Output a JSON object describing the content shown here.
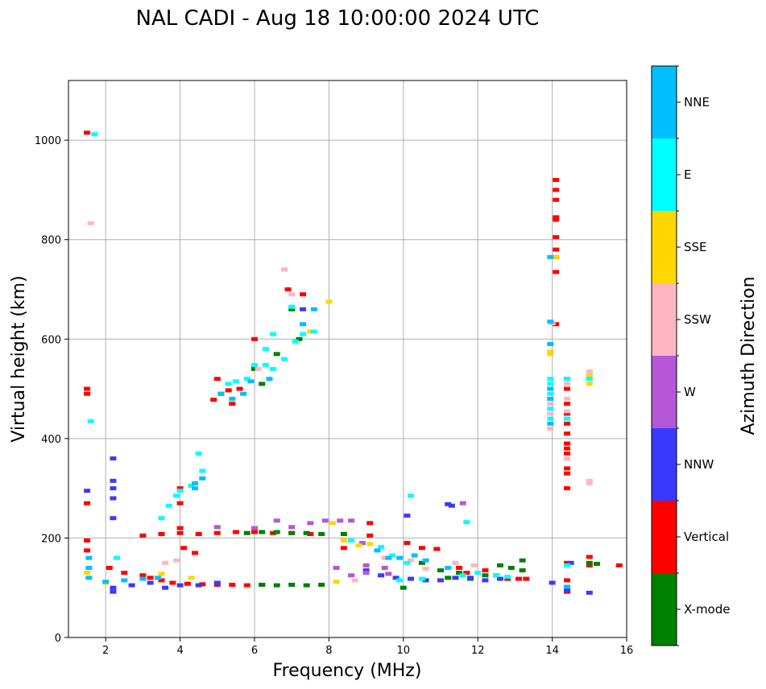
{
  "chart_data": {
    "type": "scatter",
    "title": "NAL CADI - Aug 18 10:00:00 2024 UTC",
    "xlabel": "Frequency (MHz)",
    "ylabel": "Virtual height (km)",
    "xlim": [
      1,
      16
    ],
    "ylim": [
      0,
      1120
    ],
    "xticks": [
      2,
      4,
      6,
      8,
      10,
      12,
      14,
      16
    ],
    "yticks": [
      0,
      200,
      400,
      600,
      800,
      1000
    ],
    "grid": true,
    "colorbar": {
      "label": "Azimuth Direction",
      "categories": [
        {
          "name": "X-mode",
          "color": "#008000"
        },
        {
          "name": "Vertical",
          "color": "#ff0000"
        },
        {
          "name": "NNW",
          "color": "#3a3aff"
        },
        {
          "name": "W",
          "color": "#b557d6"
        },
        {
          "name": "SSW",
          "color": "#ffb6c1"
        },
        {
          "name": "SSE",
          "color": "#ffd700"
        },
        {
          "name": "E",
          "color": "#00ffff"
        },
        {
          "name": "NNE",
          "color": "#00bfff"
        }
      ]
    },
    "series": [
      {
        "name": "Vertical",
        "points": [
          [
            1.5,
            1015
          ],
          [
            1.5,
            500
          ],
          [
            1.5,
            490
          ],
          [
            1.5,
            270
          ],
          [
            1.5,
            195
          ],
          [
            1.5,
            175
          ],
          [
            2.1,
            140
          ],
          [
            2.5,
            130
          ],
          [
            3.0,
            125
          ],
          [
            3.2,
            120
          ],
          [
            3.5,
            115
          ],
          [
            3.8,
            110
          ],
          [
            4.2,
            108
          ],
          [
            4.6,
            107
          ],
          [
            5.0,
            106
          ],
          [
            5.4,
            106
          ],
          [
            5.8,
            105
          ],
          [
            6.2,
            106
          ],
          [
            3.0,
            205
          ],
          [
            3.5,
            208
          ],
          [
            4.0,
            210
          ],
          [
            4.5,
            208
          ],
          [
            5.0,
            210
          ],
          [
            5.5,
            212
          ],
          [
            6.0,
            212
          ],
          [
            6.5,
            210
          ],
          [
            7.0,
            210
          ],
          [
            7.5,
            208
          ],
          [
            4.0,
            300
          ],
          [
            4.0,
            270
          ],
          [
            4.0,
            220
          ],
          [
            4.1,
            180
          ],
          [
            4.4,
            170
          ],
          [
            4.9,
            478
          ],
          [
            5.1,
            490
          ],
          [
            5.3,
            497
          ],
          [
            5.4,
            470
          ],
          [
            5.6,
            500
          ],
          [
            5.0,
            520
          ],
          [
            6.0,
            600
          ],
          [
            6.9,
            700
          ],
          [
            7.3,
            690
          ],
          [
            8.4,
            180
          ],
          [
            9.1,
            230
          ],
          [
            9.1,
            205
          ],
          [
            10.1,
            190
          ],
          [
            10.5,
            180
          ],
          [
            10.9,
            178
          ],
          [
            11.5,
            140
          ],
          [
            11.7,
            130
          ],
          [
            12.2,
            135
          ],
          [
            12.5,
            125
          ],
          [
            12.8,
            118
          ],
          [
            13.1,
            118
          ],
          [
            13.3,
            118
          ],
          [
            14.1,
            920
          ],
          [
            14.1,
            900
          ],
          [
            14.1,
            880
          ],
          [
            14.1,
            845
          ],
          [
            14.1,
            840
          ],
          [
            14.1,
            805
          ],
          [
            14.1,
            780
          ],
          [
            14.1,
            765
          ],
          [
            14.1,
            735
          ],
          [
            14.1,
            630
          ],
          [
            14.4,
            520
          ],
          [
            14.4,
            500
          ],
          [
            14.4,
            470
          ],
          [
            14.4,
            450
          ],
          [
            14.4,
            430
          ],
          [
            14.4,
            410
          ],
          [
            14.4,
            390
          ],
          [
            14.4,
            380
          ],
          [
            14.4,
            370
          ],
          [
            14.4,
            340
          ],
          [
            14.4,
            330
          ],
          [
            14.4,
            300
          ],
          [
            14.4,
            150
          ],
          [
            14.4,
            115
          ],
          [
            14.4,
            100
          ],
          [
            14.4,
            92
          ],
          [
            15.0,
            162
          ],
          [
            15.0,
            145
          ],
          [
            15.8,
            145
          ]
        ]
      },
      {
        "name": "X-mode",
        "points": [
          [
            6.2,
            106
          ],
          [
            6.6,
            105
          ],
          [
            7.0,
            106
          ],
          [
            7.4,
            105
          ],
          [
            7.8,
            106
          ],
          [
            5.8,
            210
          ],
          [
            6.2,
            212
          ],
          [
            6.6,
            212
          ],
          [
            7.0,
            210
          ],
          [
            7.4,
            210
          ],
          [
            7.8,
            208
          ],
          [
            8.4,
            208
          ],
          [
            6.0,
            540
          ],
          [
            6.2,
            510
          ],
          [
            6.6,
            570
          ],
          [
            7.0,
            660
          ],
          [
            7.2,
            600
          ],
          [
            10.0,
            100
          ],
          [
            10.5,
            150
          ],
          [
            11.0,
            135
          ],
          [
            11.2,
            120
          ],
          [
            11.5,
            130
          ],
          [
            11.8,
            118
          ],
          [
            12.2,
            125
          ],
          [
            12.6,
            145
          ],
          [
            12.9,
            140
          ],
          [
            13.2,
            155
          ],
          [
            13.2,
            135
          ],
          [
            15.0,
            150
          ],
          [
            15.2,
            148
          ]
        ]
      },
      {
        "name": "NNW",
        "points": [
          [
            1.5,
            295
          ],
          [
            2.2,
            360
          ],
          [
            2.2,
            315
          ],
          [
            2.2,
            300
          ],
          [
            2.2,
            280
          ],
          [
            2.2,
            240
          ],
          [
            2.2,
            100
          ],
          [
            2.2,
            92
          ],
          [
            2.7,
            105
          ],
          [
            3.2,
            110
          ],
          [
            3.6,
            100
          ],
          [
            4.0,
            105
          ],
          [
            4.5,
            105
          ],
          [
            5.0,
            110
          ],
          [
            9.0,
            135
          ],
          [
            9.4,
            125
          ],
          [
            9.8,
            120
          ],
          [
            10.2,
            118
          ],
          [
            10.6,
            115
          ],
          [
            11.0,
            115
          ],
          [
            11.4,
            120
          ],
          [
            11.8,
            120
          ],
          [
            12.2,
            115
          ],
          [
            12.6,
            118
          ],
          [
            10.1,
            245
          ],
          [
            11.2,
            268
          ],
          [
            11.3,
            265
          ],
          [
            7.3,
            660
          ],
          [
            14.0,
            110
          ],
          [
            14.4,
            95
          ],
          [
            15.0,
            90
          ],
          [
            14.5,
            150
          ]
        ]
      },
      {
        "name": "W",
        "points": [
          [
            5.0,
            222
          ],
          [
            6.0,
            220
          ],
          [
            6.6,
            235
          ],
          [
            7.0,
            222
          ],
          [
            7.5,
            230
          ],
          [
            7.9,
            235
          ],
          [
            8.3,
            235
          ],
          [
            8.6,
            235
          ],
          [
            8.9,
            190
          ],
          [
            8.2,
            140
          ],
          [
            8.6,
            125
          ],
          [
            9.0,
            130
          ],
          [
            9.0,
            145
          ],
          [
            9.5,
            140
          ],
          [
            9.6,
            128
          ],
          [
            11.6,
            270
          ]
        ]
      },
      {
        "name": "SSW",
        "points": [
          [
            1.6,
            833
          ],
          [
            6.8,
            740
          ],
          [
            7.0,
            690
          ],
          [
            6.1,
            540
          ],
          [
            8.7,
            115
          ],
          [
            9.5,
            160
          ],
          [
            10.2,
            155
          ],
          [
            10.6,
            138
          ],
          [
            11.4,
            150
          ],
          [
            11.9,
            145
          ],
          [
            14.0,
            632
          ],
          [
            13.95,
            520
          ],
          [
            13.95,
            500
          ],
          [
            13.95,
            480
          ],
          [
            13.95,
            470
          ],
          [
            13.95,
            450
          ],
          [
            13.95,
            420
          ],
          [
            14.4,
            510
          ],
          [
            14.4,
            480
          ],
          [
            14.4,
            455
          ],
          [
            15.0,
            535
          ],
          [
            15.0,
            315
          ],
          [
            15.0,
            310
          ],
          [
            14.4,
            360
          ],
          [
            3.6,
            150
          ],
          [
            3.9,
            155
          ]
        ]
      },
      {
        "name": "SSE",
        "points": [
          [
            8.0,
            675
          ],
          [
            7.5,
            615
          ],
          [
            8.1,
            230
          ],
          [
            8.4,
            195
          ],
          [
            8.8,
            185
          ],
          [
            8.2,
            112
          ],
          [
            9.1,
            188
          ],
          [
            13.95,
            590
          ],
          [
            13.95,
            575
          ],
          [
            13.95,
            570
          ],
          [
            15.0,
            510
          ],
          [
            15.0,
            527
          ],
          [
            2.0,
            110
          ],
          [
            1.5,
            130
          ],
          [
            3.5,
            128
          ],
          [
            4.3,
            120
          ],
          [
            14.1,
            765
          ]
        ]
      },
      {
        "name": "E",
        "points": [
          [
            1.7,
            1012
          ],
          [
            1.6,
            435
          ],
          [
            2.3,
            160
          ],
          [
            3.5,
            240
          ],
          [
            3.7,
            265
          ],
          [
            3.9,
            285
          ],
          [
            4.0,
            295
          ],
          [
            4.3,
            305
          ],
          [
            4.6,
            335
          ],
          [
            4.5,
            370
          ],
          [
            5.3,
            510
          ],
          [
            5.5,
            515
          ],
          [
            5.8,
            520
          ],
          [
            6.0,
            548
          ],
          [
            6.3,
            548
          ],
          [
            6.5,
            540
          ],
          [
            6.8,
            560
          ],
          [
            7.1,
            595
          ],
          [
            7.3,
            610
          ],
          [
            7.6,
            615
          ],
          [
            7.0,
            665
          ],
          [
            6.5,
            610
          ],
          [
            6.3,
            580
          ],
          [
            10.2,
            285
          ],
          [
            11.7,
            232
          ],
          [
            12.5,
            125
          ],
          [
            12.8,
            122
          ],
          [
            13.95,
            520
          ],
          [
            13.95,
            510
          ],
          [
            13.95,
            490
          ],
          [
            13.95,
            460
          ],
          [
            13.95,
            440
          ],
          [
            14.4,
            520
          ],
          [
            14.4,
            440
          ],
          [
            15.0,
            520
          ],
          [
            14.4,
            145
          ],
          [
            8.6,
            195
          ],
          [
            9.4,
            182
          ],
          [
            9.7,
            165
          ],
          [
            10.1,
            150
          ],
          [
            9.9,
            115
          ],
          [
            10.5,
            118
          ],
          [
            11.6,
            125
          ],
          [
            12.0,
            130
          ]
        ]
      },
      {
        "name": "NNE",
        "points": [
          [
            1.55,
            160
          ],
          [
            1.55,
            140
          ],
          [
            1.55,
            120
          ],
          [
            2.0,
            112
          ],
          [
            2.5,
            115
          ],
          [
            3.0,
            118
          ],
          [
            3.4,
            120
          ],
          [
            4.4,
            300
          ],
          [
            4.4,
            310
          ],
          [
            4.6,
            320
          ],
          [
            5.1,
            490
          ],
          [
            5.4,
            480
          ],
          [
            5.7,
            490
          ],
          [
            5.9,
            515
          ],
          [
            6.4,
            520
          ],
          [
            7.3,
            630
          ],
          [
            7.6,
            660
          ],
          [
            9.3,
            175
          ],
          [
            9.6,
            160
          ],
          [
            9.9,
            160
          ],
          [
            10.3,
            165
          ],
          [
            10.6,
            155
          ],
          [
            11.2,
            140
          ],
          [
            13.95,
            765
          ],
          [
            13.95,
            635
          ],
          [
            13.95,
            590
          ],
          [
            13.95,
            500
          ],
          [
            13.95,
            480
          ],
          [
            13.95,
            430
          ],
          [
            14.4,
            102
          ]
        ]
      }
    ]
  }
}
